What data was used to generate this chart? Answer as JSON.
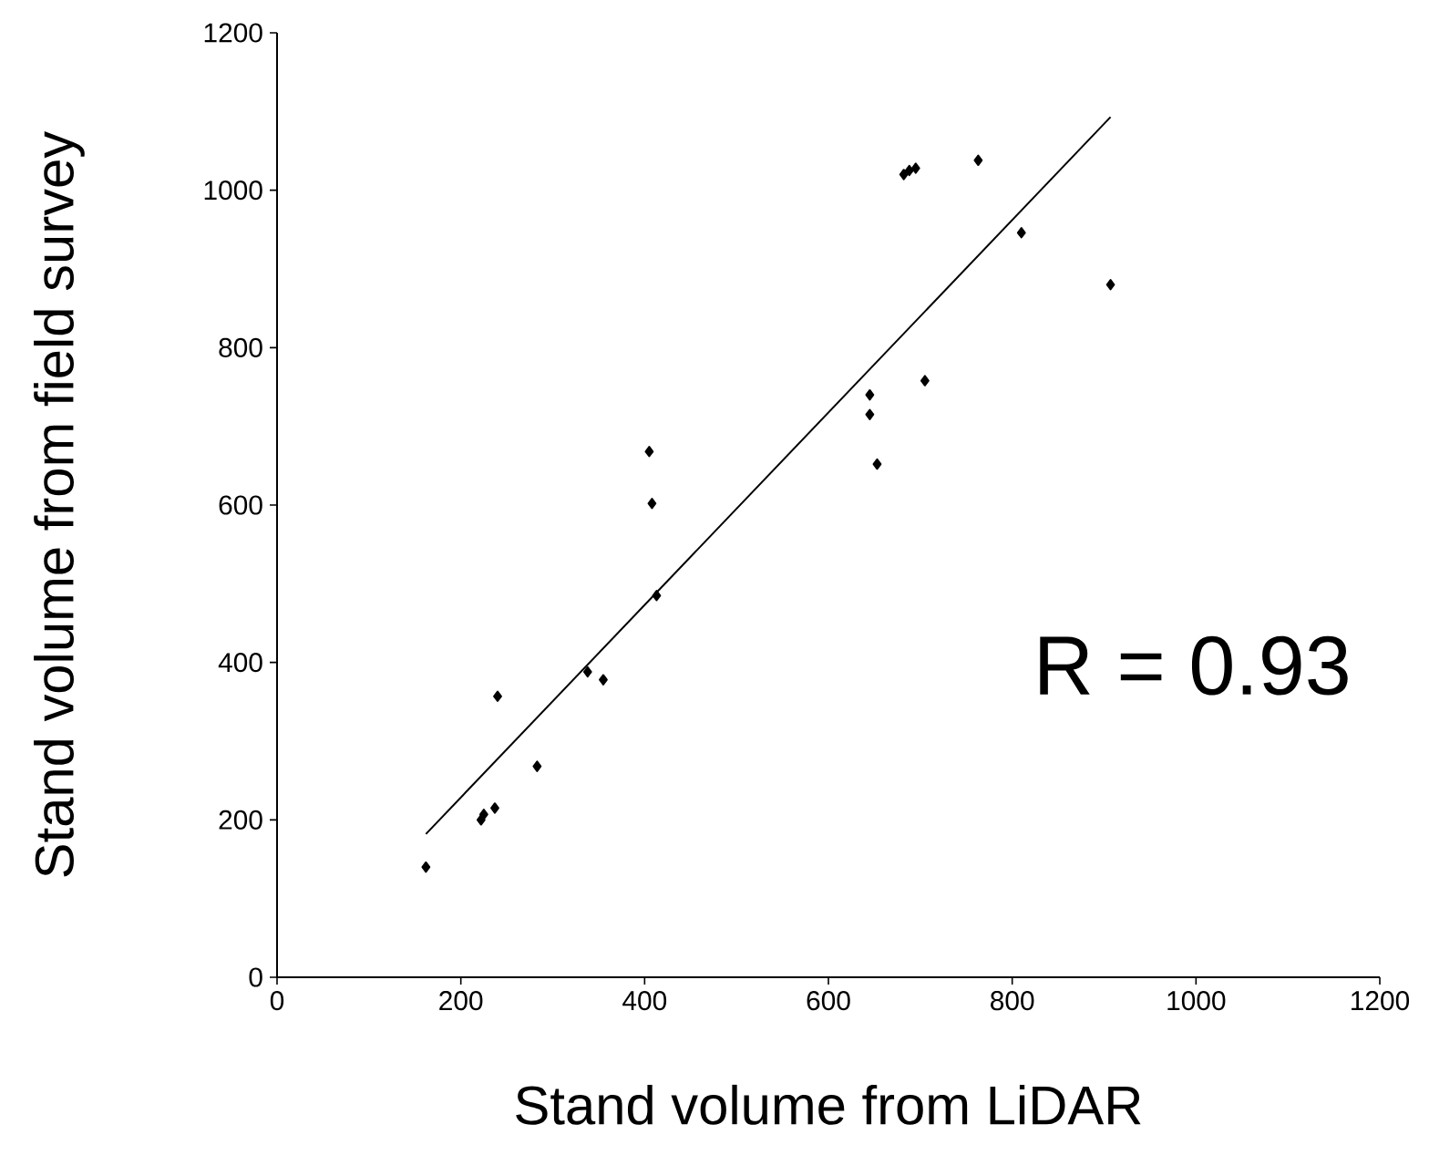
{
  "chart_data": {
    "type": "scatter",
    "xlabel": "Stand volume from LiDAR",
    "ylabel": "Stand volume from field survey",
    "xlim": [
      0,
      1200
    ],
    "xticks": [
      0,
      200,
      400,
      600,
      800,
      1000,
      1200
    ],
    "ylim": [
      0,
      1200
    ],
    "yticks": [
      0,
      200,
      400,
      600,
      800,
      1000,
      1200
    ],
    "marker": "diamond",
    "grid": false,
    "annotations": [
      "R = 0.93"
    ],
    "series": [
      {
        "color": "#000000",
        "x": [
          162,
          222,
          225,
          237,
          240,
          283,
          338,
          355,
          405,
          408,
          413,
          645,
          645,
          653,
          705,
          682,
          688,
          695,
          763,
          810,
          907
        ],
        "values": [
          140,
          200,
          207,
          215,
          357,
          268,
          388,
          378,
          668,
          602,
          485,
          740,
          715,
          652,
          758,
          1020,
          1025,
          1028,
          1038,
          946,
          880
        ]
      },
      {
        "type": "line",
        "color": "#000000",
        "marker": "none",
        "x": [
          162,
          907
        ],
        "values": [
          182,
          1093
        ]
      }
    ]
  }
}
